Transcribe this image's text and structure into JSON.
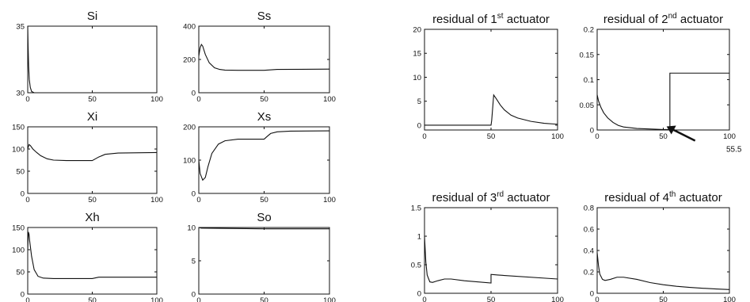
{
  "chart_data": [
    {
      "type": "line",
      "title": "Si",
      "xlim": [
        0,
        100
      ],
      "ylim": [
        30,
        35
      ],
      "xticks": [
        0,
        50,
        100
      ],
      "yticks": [
        30,
        35
      ],
      "series": [
        {
          "x": [
            0,
            0.3,
            0.7,
            1.2,
            2,
            3,
            5,
            10,
            50,
            100
          ],
          "values": [
            35,
            33.5,
            32,
            31,
            30.4,
            30.1,
            30,
            30,
            30,
            30
          ]
        }
      ]
    },
    {
      "type": "line",
      "title": "Ss",
      "xlim": [
        0,
        100
      ],
      "ylim": [
        0,
        400
      ],
      "xticks": [
        0,
        50,
        100
      ],
      "yticks": [
        0,
        200,
        400
      ],
      "series": [
        {
          "x": [
            0,
            1,
            2,
            3,
            5,
            8,
            12,
            16,
            20,
            30,
            50,
            60,
            100
          ],
          "values": [
            220,
            270,
            290,
            280,
            230,
            180,
            150,
            140,
            136,
            135,
            135,
            140,
            142
          ]
        }
      ]
    },
    {
      "type": "line",
      "title": "Xi",
      "xlim": [
        0,
        100
      ],
      "ylim": [
        0,
        150
      ],
      "xticks": [
        0,
        50,
        100
      ],
      "yticks": [
        0,
        50,
        100,
        150
      ],
      "series": [
        {
          "x": [
            0,
            1,
            2,
            4,
            7,
            10,
            15,
            20,
            30,
            50,
            55,
            60,
            70,
            100
          ],
          "values": [
            100,
            110,
            108,
            100,
            92,
            85,
            78,
            75,
            74,
            74,
            82,
            88,
            91,
            92
          ]
        }
      ]
    },
    {
      "type": "line",
      "title": "Xs",
      "xlim": [
        0,
        100
      ],
      "ylim": [
        0,
        200
      ],
      "xticks": [
        0,
        50,
        100
      ],
      "yticks": [
        0,
        100,
        200
      ],
      "series": [
        {
          "x": [
            0,
            1,
            3,
            5,
            7,
            10,
            15,
            20,
            30,
            50,
            52,
            55,
            60,
            70,
            100
          ],
          "values": [
            100,
            60,
            40,
            48,
            80,
            120,
            148,
            158,
            163,
            163,
            170,
            180,
            185,
            187,
            188
          ]
        }
      ]
    },
    {
      "type": "line",
      "title": "Xh",
      "xlim": [
        0,
        100
      ],
      "ylim": [
        0,
        150
      ],
      "xticks": [
        0,
        50,
        100
      ],
      "yticks": [
        0,
        50,
        100,
        150
      ],
      "series": [
        {
          "x": [
            0,
            0.5,
            1,
            1.5,
            3,
            5,
            8,
            12,
            20,
            50,
            55,
            100
          ],
          "values": [
            100,
            140,
            135,
            120,
            85,
            55,
            40,
            36,
            35,
            35,
            38,
            38
          ]
        }
      ]
    },
    {
      "type": "line",
      "title": "So",
      "xlim": [
        0,
        100
      ],
      "ylim": [
        0,
        10
      ],
      "xticks": [
        0,
        50,
        100
      ],
      "yticks": [
        0,
        5,
        10
      ],
      "series": [
        {
          "x": [
            0,
            2,
            50,
            100
          ],
          "values": [
            10,
            9.9,
            9.8,
            9.8
          ]
        }
      ]
    },
    {
      "type": "line",
      "title_main": "residual of 1",
      "title_sup": "st",
      "title_end": " actuator",
      "xlim": [
        0,
        100
      ],
      "ylim": [
        -1,
        20
      ],
      "xticks": [
        0,
        50,
        100
      ],
      "yticks": [
        0,
        5,
        10,
        15,
        20
      ],
      "series": [
        {
          "x": [
            0,
            50,
            50.5,
            52,
            54,
            57,
            60,
            65,
            70,
            80,
            90,
            100
          ],
          "values": [
            0,
            0,
            1,
            6.3,
            5.5,
            4.2,
            3.2,
            2.1,
            1.5,
            0.8,
            0.4,
            0.2
          ]
        }
      ]
    },
    {
      "type": "line",
      "title_main": "residual of 2",
      "title_sup": "nd",
      "title_end": " actuator",
      "xlim": [
        0,
        100
      ],
      "ylim": [
        0,
        0.2
      ],
      "xticks": [
        0,
        50,
        100
      ],
      "yticks": [
        0,
        0.05,
        0.1,
        0.15,
        0.2
      ],
      "annotation": "55.5",
      "series": [
        {
          "x": [
            0,
            1,
            3,
            5,
            8,
            12,
            16,
            20,
            30,
            50,
            55,
            55,
            100
          ],
          "values": [
            0.07,
            0.058,
            0.044,
            0.034,
            0.024,
            0.015,
            0.009,
            0.006,
            0.003,
            0.001,
            0.001,
            0.113,
            0.113
          ]
        }
      ]
    },
    {
      "type": "line",
      "title_main": "residual of 3",
      "title_sup": "rd",
      "title_end": " actuator",
      "xlim": [
        0,
        100
      ],
      "ylim": [
        0,
        1.5
      ],
      "xticks": [
        0,
        50,
        100
      ],
      "yticks": [
        0,
        0.5,
        1,
        1.5
      ],
      "series": [
        {
          "x": [
            0,
            1,
            2,
            4,
            6,
            10,
            15,
            20,
            30,
            50,
            50,
            55,
            100
          ],
          "values": [
            1.0,
            0.55,
            0.32,
            0.2,
            0.19,
            0.22,
            0.25,
            0.25,
            0.22,
            0.18,
            0.33,
            0.32,
            0.25
          ]
        }
      ]
    },
    {
      "type": "line",
      "title_main": "residual of 4",
      "title_sup": "th",
      "title_end": " actuator",
      "xlim": [
        0,
        100
      ],
      "ylim": [
        0,
        0.8
      ],
      "xticks": [
        0,
        50,
        100
      ],
      "yticks": [
        0,
        0.2,
        0.4,
        0.6,
        0.8
      ],
      "series": [
        {
          "x": [
            0,
            1,
            2,
            4,
            6,
            10,
            15,
            20,
            30,
            40,
            50,
            60,
            70,
            80,
            90,
            100
          ],
          "values": [
            0.38,
            0.26,
            0.18,
            0.13,
            0.12,
            0.13,
            0.15,
            0.15,
            0.13,
            0.1,
            0.08,
            0.065,
            0.055,
            0.047,
            0.04,
            0.035
          ]
        }
      ]
    }
  ]
}
